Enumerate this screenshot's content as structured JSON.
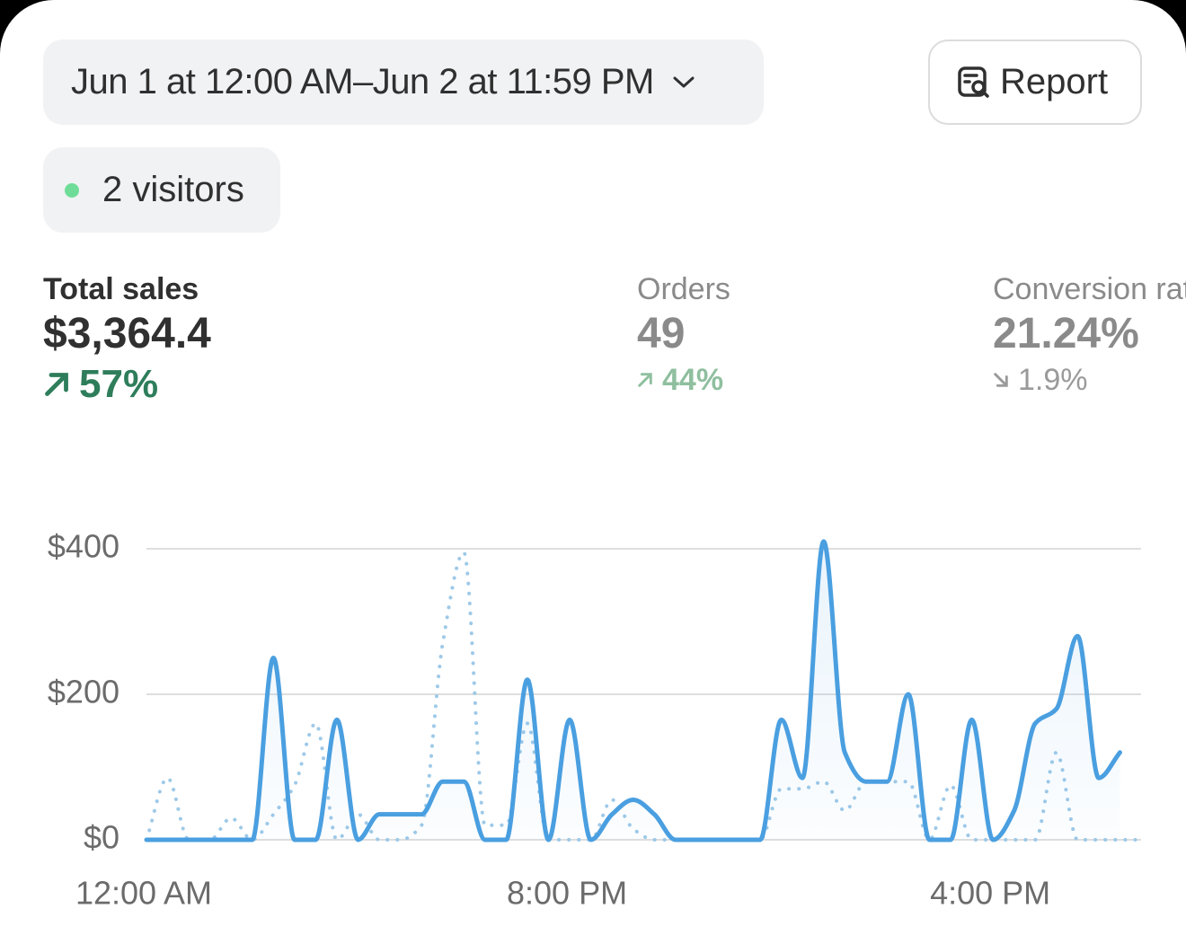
{
  "header": {
    "date_range": "Jun 1 at 12:00 AM–Jun 2 at 11:59 PM",
    "report": "Report",
    "visitors": "2 visitors"
  },
  "metrics": [
    {
      "label": "Total sales",
      "value": "$3,364.4",
      "change": "57%",
      "direction": "up"
    },
    {
      "label": "Orders",
      "value": "49",
      "change": "44%",
      "direction": "up"
    },
    {
      "label": "Conversion rate",
      "value": "21.24%",
      "change": "1.9%",
      "direction": "down"
    }
  ],
  "chart_data": {
    "type": "line",
    "categories": [
      "12:00 AM",
      null,
      null,
      null,
      null,
      null,
      null,
      null,
      null,
      null,
      null,
      null,
      null,
      null,
      null,
      null,
      null,
      null,
      null,
      null,
      "8:00 PM",
      null,
      null,
      null,
      null,
      null,
      null,
      null,
      null,
      null,
      null,
      null,
      null,
      null,
      null,
      null,
      null,
      null,
      null,
      null,
      "4:00 PM",
      null,
      null,
      null,
      null,
      null,
      null,
      null
    ],
    "series": [
      {
        "color": "#4a9fe0",
        "dashed": false,
        "area": true,
        "values": [
          0,
          0,
          0,
          0,
          0,
          0,
          250,
          0,
          0,
          165,
          0,
          35,
          35,
          35,
          80,
          80,
          0,
          0,
          220,
          0,
          165,
          0,
          35,
          55,
          35,
          0,
          0,
          0,
          0,
          0,
          165,
          85,
          410,
          120,
          80,
          80,
          200,
          0,
          0,
          165,
          0,
          40,
          160,
          180,
          280,
          85,
          120,
          null
        ]
      },
      {
        "color": "#9ec9e8",
        "dashed": true,
        "area": false,
        "values": [
          0,
          85,
          0,
          0,
          30,
          0,
          35,
          75,
          160,
          0,
          35,
          0,
          0,
          20,
          270,
          395,
          20,
          20,
          160,
          0,
          0,
          0,
          55,
          15,
          0,
          0,
          0,
          0,
          0,
          0,
          70,
          70,
          80,
          40,
          80,
          80,
          80,
          0,
          75,
          0,
          0,
          0,
          0,
          120,
          0,
          0,
          0,
          0
        ]
      }
    ],
    "ylim": [
      0,
      400
    ],
    "yticks": [
      {
        "value": 0,
        "label": "$0"
      },
      {
        "value": 200,
        "label": "$200"
      },
      {
        "value": 400,
        "label": "$400"
      }
    ],
    "grid": true
  }
}
